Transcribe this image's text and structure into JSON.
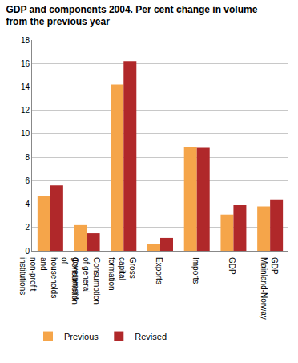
{
  "chart_data": {
    "type": "bar",
    "title": "GDP and components 2004. Per cent change in volume from the previous year",
    "categories": [
      "Consumption of households and non-profit institutions",
      "Consumption of general government",
      "Gross capital formation",
      "Exports",
      "Imports",
      "GDP",
      "GDP Mainland-Norway"
    ],
    "series": [
      {
        "name": "Previous",
        "color": "#f5a54a",
        "values": [
          4.7,
          2.2,
          14.2,
          0.6,
          8.9,
          3.1,
          3.8
        ]
      },
      {
        "name": "Revised",
        "color": "#b0282a",
        "values": [
          5.6,
          1.5,
          16.2,
          1.1,
          8.8,
          3.9,
          4.4
        ]
      }
    ],
    "ylim": [
      0,
      18
    ],
    "yticks": [
      0,
      2,
      4,
      6,
      8,
      10,
      12,
      14,
      16,
      18
    ],
    "grid": true,
    "legend": "bottom"
  }
}
